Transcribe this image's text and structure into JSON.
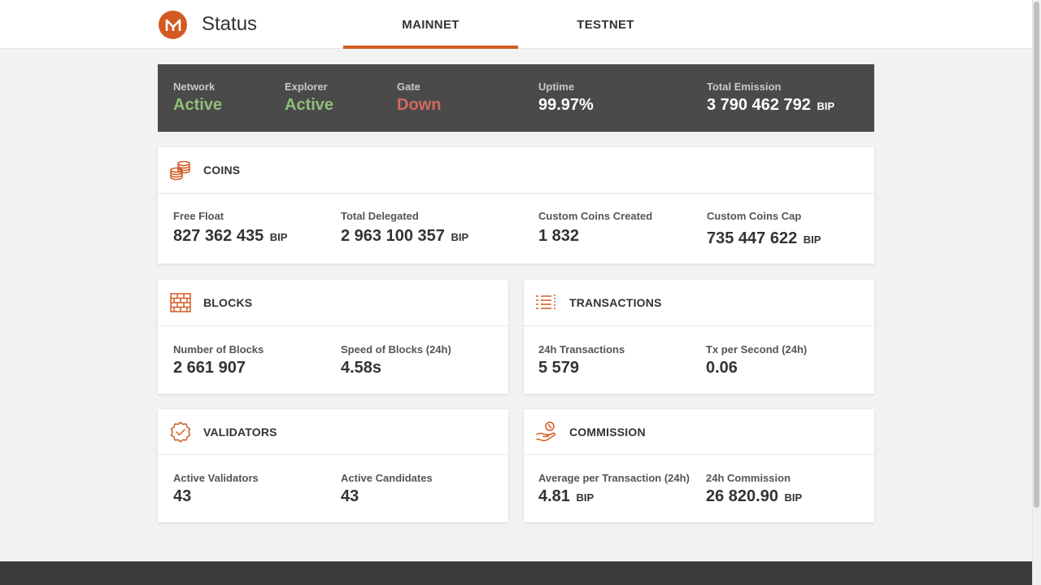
{
  "colors": {
    "accent": "#d35a22",
    "active": "#8fbf7a",
    "down": "#d36a5c",
    "statusbar_bg": "#4a4a4a"
  },
  "header": {
    "logo_letter": "M",
    "title": "Status",
    "tabs": [
      {
        "label": "MAINNET",
        "selected": true
      },
      {
        "label": "TESTNET",
        "selected": false
      }
    ]
  },
  "status": {
    "network": {
      "label": "Network",
      "value": "Active"
    },
    "explorer": {
      "label": "Explorer",
      "value": "Active"
    },
    "gate": {
      "label": "Gate",
      "value": "Down"
    },
    "uptime": {
      "label": "Uptime",
      "value": "99.97%"
    },
    "emission": {
      "label": "Total Emission",
      "value": "3 790 462 792",
      "unit": "BIP"
    }
  },
  "coins": {
    "title": "COINS",
    "icon": "coins-icon",
    "free_float": {
      "label": "Free Float",
      "value": "827 362 435",
      "unit": "BIP"
    },
    "total_delegated": {
      "label": "Total Delegated",
      "value": "2 963 100 357",
      "unit": "BIP"
    },
    "custom_created": {
      "label": "Custom Coins Created",
      "value": "1 832"
    },
    "custom_cap": {
      "label": "Custom Coins Cap",
      "value": "735 447 622",
      "unit": "BIP"
    }
  },
  "blocks": {
    "title": "BLOCKS",
    "icon": "blocks-icon",
    "number": {
      "label": "Number of Blocks",
      "value": "2 661 907"
    },
    "speed": {
      "label": "Speed of Blocks (24h)",
      "value": "4.58s"
    }
  },
  "transactions": {
    "title": "TRANSACTIONS",
    "icon": "list-icon",
    "count24h": {
      "label": "24h Transactions",
      "value": "5 579"
    },
    "tps": {
      "label": "Tx per Second (24h)",
      "value": "0.06"
    }
  },
  "validators": {
    "title": "VALIDATORS",
    "icon": "badge-check-icon",
    "active": {
      "label": "Active Validators",
      "value": "43"
    },
    "candidates": {
      "label": "Active Candidates",
      "value": "43"
    }
  },
  "commission": {
    "title": "COMMISSION",
    "icon": "hand-coin-icon",
    "avg": {
      "label": "Average per Transaction (24h)",
      "value": "4.81",
      "unit": "BIP"
    },
    "total24h": {
      "label": "24h Commission",
      "value": "26 820.90",
      "unit": "BIP"
    }
  }
}
